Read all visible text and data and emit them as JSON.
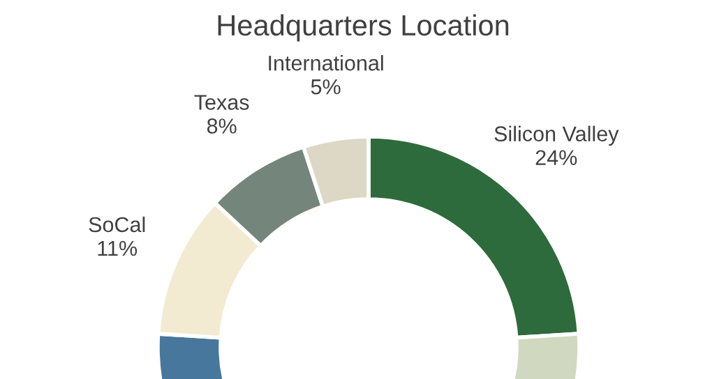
{
  "chart_data": {
    "type": "donut",
    "title": "Headquarters Location",
    "categories": [
      "Silicon Valley",
      null,
      null,
      "SoCal",
      "Texas",
      "International"
    ],
    "values": [
      24,
      26,
      26,
      11,
      8,
      5
    ],
    "value_labels": [
      "24%",
      null,
      null,
      "11%",
      "8%",
      "5%"
    ],
    "colors": [
      "#2e6b3c",
      "#d0d9c0",
      "#47779c",
      "#f3ead2",
      "#74867c",
      "#ddd8c6"
    ],
    "legend": false
  }
}
